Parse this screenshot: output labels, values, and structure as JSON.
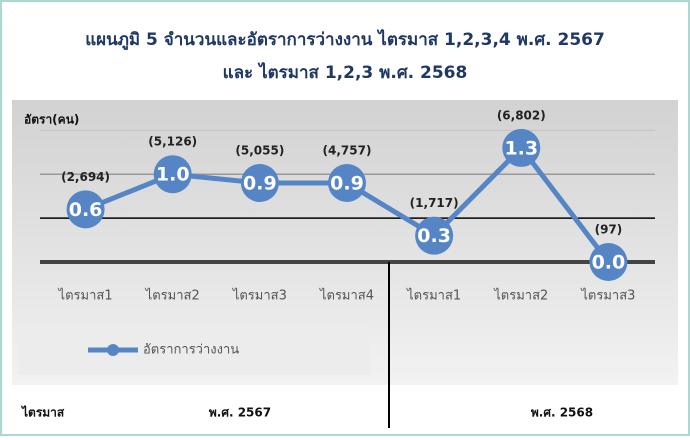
{
  "chart_data": {
    "type": "line",
    "title": "แผนภูมิ 5 จำนวนและอัตราการว่างงาน ไตรมาส 1,2,3,4 พ.ศ. 2567",
    "subtitle": "และ ไตรมาส 1,2,3 พ.ศ. 2568",
    "y_label": "อัตรา(คน)",
    "x_label": "ไตรมาส",
    "groups": [
      "พ.ศ. 2567",
      "พ.ศ. 2568"
    ],
    "categories": [
      "ไตรมาส1",
      "ไตรมาส2",
      "ไตรมาส3",
      "ไตรมาส4",
      "ไตรมาส1",
      "ไตรมาส2",
      "ไตรมาส3"
    ],
    "series": [
      {
        "name": "อัตราการว่างงาน",
        "color": "#5585c5",
        "values": [
          0.6,
          1.0,
          0.9,
          0.9,
          0.3,
          1.3,
          0.0
        ],
        "value_labels": [
          "0.6",
          "1.0",
          "0.9",
          "0.9",
          "0.3",
          "1.3",
          "0.0"
        ],
        "counts": [
          2694,
          5126,
          5055,
          4757,
          1717,
          6802,
          97
        ],
        "count_labels": [
          "(2,694)",
          "(5,126)",
          "(5,055)",
          "(4,757)",
          "(1,717)",
          "(6,802)",
          "(97)"
        ]
      }
    ],
    "ylim": [
      0,
      1.8
    ],
    "yticks": [
      0,
      0.5,
      1,
      1.5
    ],
    "grid": true
  }
}
